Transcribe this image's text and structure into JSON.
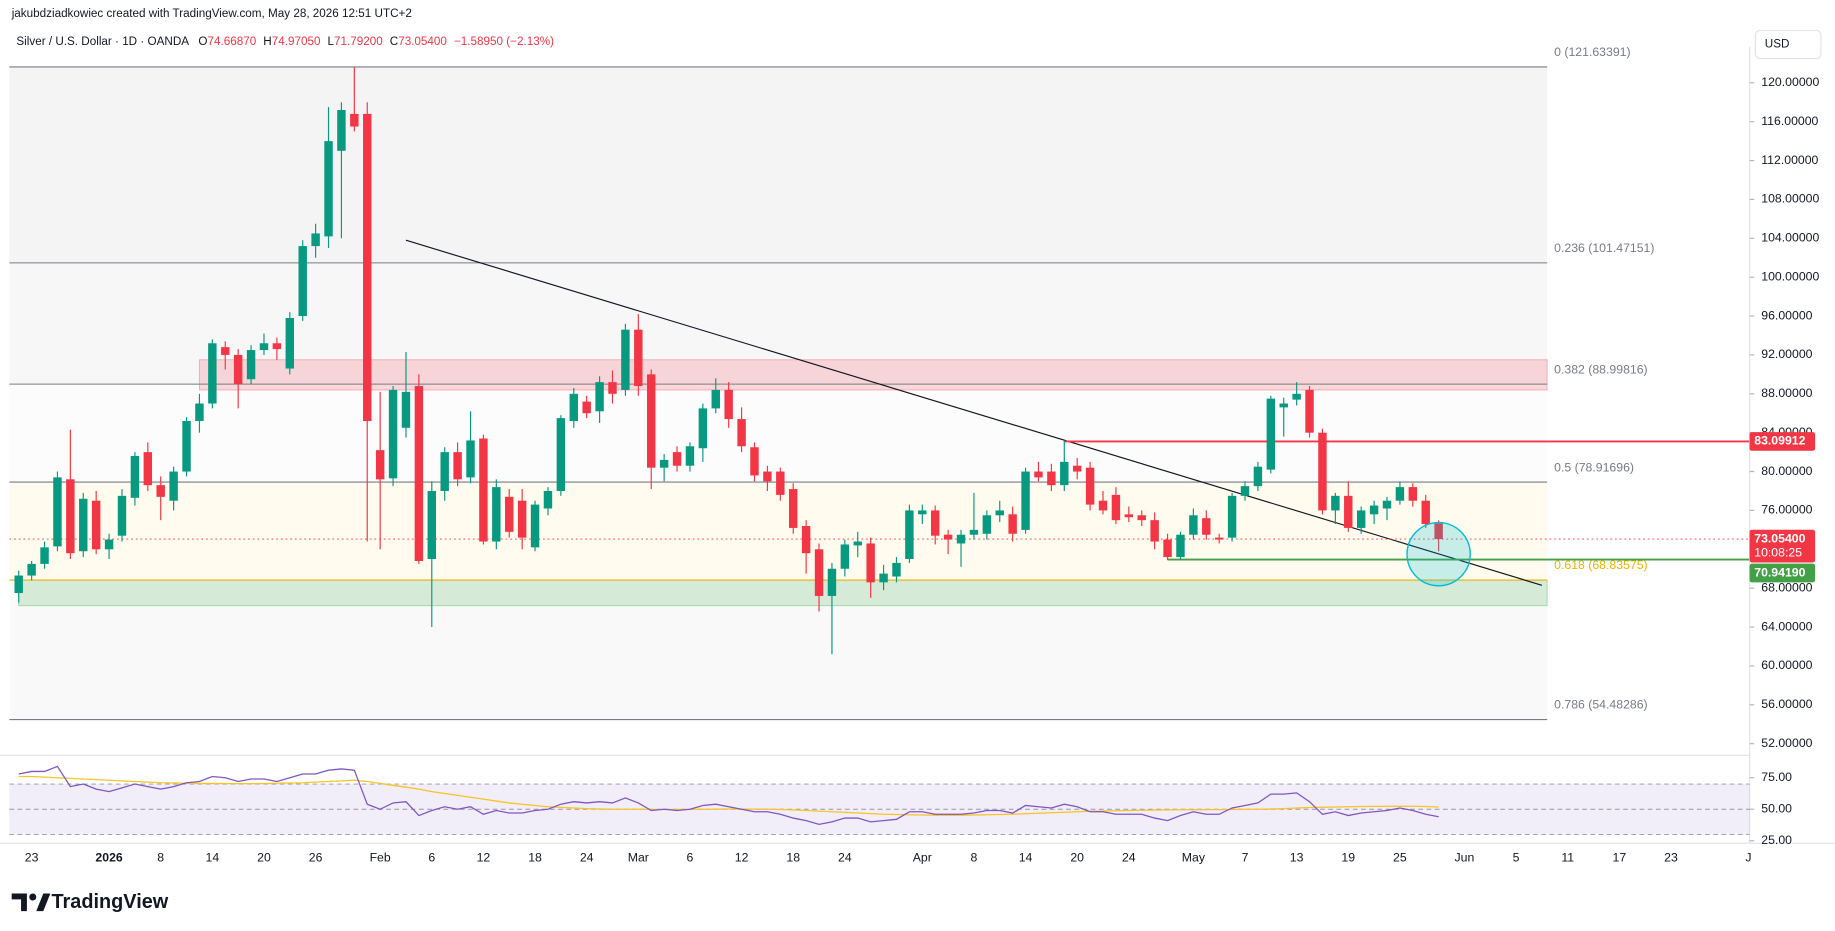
{
  "header": {
    "credit": "jakubdziadkowiec created with TradingView.com, May 28, 2026 12:51 UTC+2",
    "symbol": "Silver / U.S. Dollar · 1D · OANDA",
    "ohlc": [
      "O",
      "74.66870",
      "H",
      "74.97050",
      "L",
      "71.79200",
      "C",
      "73.05400"
    ],
    "change": "−1.58950 (−2.13%)",
    "currency": "USD",
    "brand": "TradingView"
  },
  "chart_data": {
    "type": "candlestick",
    "up_color": "#089981",
    "down_color": "#f23645",
    "categories": [
      null,
      "23",
      null,
      null,
      null,
      null,
      null,
      "2026",
      null,
      null,
      null,
      "8",
      null,
      null,
      null,
      "14",
      null,
      null,
      null,
      "20",
      null,
      null,
      null,
      "26",
      null,
      null,
      null,
      null,
      "Feb",
      null,
      null,
      null,
      "6",
      null,
      null,
      null,
      "12",
      null,
      null,
      null,
      "18",
      null,
      null,
      null,
      "24",
      null,
      null,
      null,
      "Mar",
      null,
      null,
      null,
      "6",
      null,
      null,
      null,
      "12",
      null,
      null,
      null,
      "18",
      null,
      null,
      null,
      "24",
      null,
      null,
      null,
      null,
      null,
      "Apr",
      null,
      null,
      null,
      "8",
      null,
      null,
      null,
      "14",
      null,
      null,
      null,
      "20",
      null,
      null,
      null,
      "24",
      null,
      null,
      null,
      null,
      "May",
      null,
      null,
      null,
      "7",
      null,
      null,
      null,
      "13",
      null,
      null,
      null,
      "19",
      null,
      null,
      null,
      "25",
      null,
      null,
      null,
      null,
      "Jun",
      null,
      null,
      null,
      "5",
      null,
      null,
      null,
      "11",
      null,
      null,
      null,
      "17",
      null,
      null,
      null,
      "23",
      null,
      null,
      null,
      null,
      null,
      "J"
    ],
    "candles": [
      [
        67.5,
        69.8,
        66.5,
        69.3
      ],
      [
        69.3,
        70.8,
        68.8,
        70.5
      ],
      [
        70.5,
        72.8,
        70.0,
        72.2
      ],
      [
        72.3,
        80.0,
        71.8,
        79.4
      ],
      [
        79.2,
        84.3,
        71.0,
        71.6
      ],
      [
        71.8,
        77.8,
        71.2,
        77.2
      ],
      [
        77.0,
        78.0,
        71.5,
        72.0
      ],
      [
        72.0,
        73.6,
        71.0,
        73.0
      ],
      [
        73.4,
        78.2,
        72.8,
        77.5
      ],
      [
        77.3,
        82.0,
        76.5,
        81.6
      ],
      [
        82.0,
        83.0,
        78.0,
        78.6
      ],
      [
        78.6,
        79.5,
        75.0,
        77.4
      ],
      [
        77.0,
        80.5,
        76.0,
        80.0
      ],
      [
        80.0,
        85.6,
        79.5,
        85.2
      ],
      [
        85.2,
        88.0,
        84.0,
        87.0
      ],
      [
        87.0,
        93.6,
        86.5,
        93.2
      ],
      [
        92.8,
        93.4,
        90.5,
        92.0
      ],
      [
        92.0,
        92.6,
        86.5,
        89.0
      ],
      [
        89.5,
        93.0,
        89.0,
        92.5
      ],
      [
        92.5,
        94.2,
        92.0,
        93.2
      ],
      [
        93.2,
        93.8,
        91.5,
        92.6
      ],
      [
        90.6,
        96.4,
        90.0,
        95.8
      ],
      [
        96.0,
        103.8,
        95.5,
        103.2
      ],
      [
        103.2,
        105.5,
        102.0,
        104.5
      ],
      [
        104.2,
        117.5,
        103.0,
        114.0
      ],
      [
        113.0,
        118.0,
        104.0,
        117.2
      ],
      [
        116.8,
        121.6,
        115.0,
        115.5
      ],
      [
        116.8,
        118.0,
        72.8,
        85.2
      ],
      [
        82.2,
        88.2,
        72.0,
        79.2
      ],
      [
        79.3,
        88.8,
        78.5,
        88.4
      ],
      [
        84.5,
        92.3,
        83.5,
        88.2
      ],
      [
        88.8,
        90.0,
        70.5,
        70.8
      ],
      [
        71.0,
        79.0,
        64.0,
        78.0
      ],
      [
        78.0,
        82.5,
        77.0,
        82.0
      ],
      [
        82.0,
        83.0,
        78.5,
        79.2
      ],
      [
        79.4,
        86.2,
        78.8,
        83.2
      ],
      [
        83.4,
        83.8,
        72.5,
        72.8
      ],
      [
        72.8,
        79.2,
        72.0,
        78.4
      ],
      [
        77.4,
        78.2,
        73.2,
        73.8
      ],
      [
        77.0,
        78.2,
        72.0,
        73.2
      ],
      [
        72.2,
        77.0,
        71.8,
        76.6
      ],
      [
        76.2,
        78.4,
        75.5,
        78.0
      ],
      [
        78.0,
        85.8,
        77.5,
        85.5
      ],
      [
        85.2,
        88.6,
        84.5,
        88.0
      ],
      [
        87.2,
        87.8,
        85.5,
        86.0
      ],
      [
        86.2,
        89.8,
        85.0,
        89.2
      ],
      [
        89.2,
        90.4,
        87.0,
        88.0
      ],
      [
        88.4,
        95.2,
        87.8,
        94.6
      ],
      [
        94.6,
        96.2,
        87.8,
        88.8
      ],
      [
        90.0,
        90.5,
        78.2,
        80.4
      ],
      [
        80.4,
        81.8,
        79.0,
        81.2
      ],
      [
        82.0,
        82.6,
        80.0,
        80.6
      ],
      [
        80.6,
        83.0,
        80.0,
        82.6
      ],
      [
        82.4,
        87.0,
        81.0,
        86.5
      ],
      [
        86.5,
        89.6,
        86.0,
        88.4
      ],
      [
        88.4,
        89.2,
        84.5,
        85.4
      ],
      [
        85.4,
        86.6,
        82.0,
        82.6
      ],
      [
        82.5,
        83.0,
        79.0,
        79.6
      ],
      [
        80.0,
        80.6,
        78.0,
        79.0
      ],
      [
        80.0,
        80.4,
        77.0,
        77.6
      ],
      [
        78.2,
        78.8,
        73.6,
        74.2
      ],
      [
        74.4,
        75.0,
        69.5,
        71.6
      ],
      [
        72.0,
        72.6,
        65.6,
        67.2
      ],
      [
        67.2,
        70.6,
        61.2,
        70.0
      ],
      [
        70.0,
        73.0,
        69.2,
        72.5
      ],
      [
        72.4,
        73.8,
        71.2,
        72.8
      ],
      [
        72.6,
        73.2,
        67.0,
        68.6
      ],
      [
        68.6,
        70.4,
        67.8,
        69.5
      ],
      [
        69.2,
        71.2,
        68.6,
        70.6
      ],
      [
        71.0,
        76.6,
        70.6,
        76.0
      ],
      [
        75.6,
        76.6,
        74.6,
        76.0
      ],
      [
        76.0,
        76.5,
        72.5,
        73.4
      ],
      [
        73.5,
        74.0,
        71.5,
        73.0
      ],
      [
        72.6,
        74.0,
        70.2,
        73.5
      ],
      [
        73.5,
        77.8,
        73.0,
        74.0
      ],
      [
        73.6,
        76.0,
        73.0,
        75.5
      ],
      [
        75.5,
        77.0,
        74.8,
        76.0
      ],
      [
        75.6,
        76.4,
        72.8,
        73.6
      ],
      [
        74.0,
        80.4,
        73.6,
        80.0
      ],
      [
        80.0,
        81.0,
        79.0,
        79.4
      ],
      [
        80.0,
        80.8,
        78.0,
        78.6
      ],
      [
        78.6,
        83.2,
        78.0,
        81.0
      ],
      [
        80.6,
        81.4,
        79.2,
        80.0
      ],
      [
        80.4,
        81.0,
        76.0,
        76.6
      ],
      [
        77.0,
        78.0,
        75.6,
        76.0
      ],
      [
        77.6,
        78.4,
        74.6,
        75.0
      ],
      [
        75.6,
        76.4,
        74.8,
        75.3
      ],
      [
        75.5,
        76.0,
        74.4,
        75.0
      ],
      [
        75.0,
        75.8,
        72.0,
        72.8
      ],
      [
        73.0,
        73.6,
        70.9,
        71.2
      ],
      [
        71.2,
        73.8,
        70.9,
        73.5
      ],
      [
        73.5,
        76.2,
        73.0,
        75.5
      ],
      [
        75.2,
        76.0,
        73.0,
        73.5
      ],
      [
        73.2,
        73.6,
        72.6,
        73.0
      ],
      [
        73.2,
        77.8,
        72.8,
        77.5
      ],
      [
        77.5,
        79.0,
        77.0,
        78.5
      ],
      [
        78.5,
        81.0,
        78.0,
        80.5
      ],
      [
        80.2,
        87.8,
        79.8,
        87.5
      ],
      [
        86.6,
        87.6,
        83.6,
        87.0
      ],
      [
        87.4,
        89.2,
        86.8,
        88.0
      ],
      [
        88.4,
        88.8,
        83.5,
        84.0
      ],
      [
        84.0,
        84.4,
        75.6,
        76.0
      ],
      [
        76.0,
        77.8,
        74.6,
        77.5
      ],
      [
        77.5,
        79.0,
        73.8,
        74.2
      ],
      [
        74.2,
        76.4,
        73.6,
        76.0
      ],
      [
        75.6,
        77.0,
        74.6,
        76.5
      ],
      [
        76.2,
        77.4,
        75.0,
        77.0
      ],
      [
        77.0,
        79.0,
        76.6,
        78.4
      ],
      [
        78.4,
        78.8,
        76.4,
        77.0
      ],
      [
        77.0,
        77.6,
        74.2,
        74.6
      ],
      [
        74.6687,
        74.9705,
        71.792,
        73.054
      ],
      null,
      null,
      null,
      null,
      null,
      null,
      null,
      null,
      null,
      null,
      null,
      null,
      null,
      null,
      null,
      null,
      null,
      null,
      null,
      null,
      null,
      null,
      null,
      null
    ],
    "ylim": [
      50.8,
      123.7
    ],
    "yticks": [
      {
        "value": 52,
        "label": "52.00000"
      },
      {
        "value": 56,
        "label": "56.00000"
      },
      {
        "value": 60,
        "label": "60.00000"
      },
      {
        "value": 64,
        "label": "64.00000"
      },
      {
        "value": 68,
        "label": "68.00000"
      },
      {
        "value": 72,
        "label": "72.00000"
      },
      {
        "value": 76,
        "label": "76.00000"
      },
      {
        "value": 80,
        "label": "80.00000"
      },
      {
        "value": 84,
        "label": "84.00000"
      },
      {
        "value": 88,
        "label": "88.00000"
      },
      {
        "value": 92,
        "label": "92.00000"
      },
      {
        "value": 96,
        "label": "96.00000"
      },
      {
        "value": 100,
        "label": "100.00000"
      },
      {
        "value": 104,
        "label": "104.00000"
      },
      {
        "value": 108,
        "label": "108.00000"
      },
      {
        "value": 112,
        "label": "112.00000"
      },
      {
        "value": 116,
        "label": "116.00000"
      },
      {
        "value": 120,
        "label": "120.00000"
      }
    ],
    "fib_levels": [
      {
        "label": "0 (121.63391)",
        "value": 121.63391,
        "color": "#787b86",
        "fill": "#f4f4f5"
      },
      {
        "label": "0.236 (101.47151)",
        "value": 101.47151,
        "color": "#787b86",
        "fill": "#f7f7f8"
      },
      {
        "label": "0.382 (88.99816)",
        "value": 88.99816,
        "color": "#787b86",
        "fill": "#fcfcfc"
      },
      {
        "label": "0.5 (78.91696)",
        "value": 78.91696,
        "color": "#787b86",
        "fill": "#fffbee"
      },
      {
        "label": "0.618 (68.83575)",
        "value": 68.83575,
        "color": "#e8b400",
        "fill": "#f9f9fa"
      },
      {
        "label": "0.786 (54.48286)",
        "value": 54.48286,
        "color": "#787b86",
        "fill": null
      }
    ],
    "zones": [
      {
        "low": 88.4,
        "high": 91.5,
        "start": 14,
        "color": "rgba(242,54,69,0.18)",
        "border": "#f7a9b0"
      },
      {
        "low": 66.2,
        "high": 68.83575,
        "start": 0,
        "color": "rgba(76,175,80,0.2)",
        "border": "#a5d6a7"
      }
    ],
    "trendline": {
      "start": {
        "index": 30,
        "price": 103.8
      },
      "end": {
        "index": 118,
        "price": 68.3
      },
      "color": "#131722"
    },
    "horizontal_lines": [
      {
        "value": 83.09912,
        "label": "83.09912",
        "start": 81,
        "color": "#f23645"
      },
      {
        "value": 70.9419,
        "label": "70.94190",
        "start": 89,
        "color": "#43a047"
      }
    ],
    "last_price": {
      "value": 73.054,
      "label": "73.05400",
      "countdown": "10:08:25",
      "color": "#f23645"
    },
    "highlight": {
      "index": 110,
      "price": 71.5,
      "color": "#00bcd4"
    },
    "rsi": {
      "color": "#7e57c2",
      "ma_color": "#f7c325",
      "ylim": [
        24,
        90
      ],
      "levels": [
        70,
        50,
        30
      ],
      "yticks": [
        {
          "value": 25,
          "label": "25.00"
        },
        {
          "value": 50,
          "label": "50.00"
        },
        {
          "value": 75,
          "label": "75.00"
        }
      ],
      "values": [
        78,
        80,
        80,
        84,
        68,
        70,
        66,
        64,
        67,
        70,
        68,
        66,
        68,
        71,
        72,
        76,
        75,
        72,
        74,
        74,
        72,
        75,
        78,
        78,
        81,
        82,
        81,
        54,
        50,
        55,
        56,
        45,
        49,
        52,
        50,
        52,
        46,
        49,
        47,
        47,
        49,
        50,
        54,
        56,
        55,
        56,
        55,
        59,
        55,
        49,
        50,
        49,
        50,
        53,
        54,
        52,
        50,
        48,
        48,
        46,
        43,
        41,
        38,
        40,
        43,
        43,
        40,
        41,
        42,
        48,
        48,
        46,
        46,
        46,
        47,
        49,
        49,
        47,
        53,
        52,
        51,
        54,
        52,
        48,
        48,
        46,
        46,
        46,
        43,
        41,
        45,
        48,
        46,
        46,
        51,
        53,
        55,
        62,
        62,
        63,
        56,
        46,
        48,
        45,
        47,
        48,
        49,
        51,
        49,
        46,
        44,
        null,
        null,
        null,
        null,
        null,
        null,
        null,
        null,
        null,
        null,
        null,
        null,
        null,
        null,
        null,
        null,
        null,
        null,
        null,
        null,
        null,
        null,
        null,
        null
      ],
      "ma": [
        76,
        76,
        75.5,
        75,
        74.5,
        74,
        73.5,
        73,
        72.5,
        72,
        71.5,
        71,
        70.8,
        70.6,
        70.5,
        70.5,
        70.4,
        70.3,
        70.3,
        70.4,
        70.6,
        70.8,
        71,
        71.5,
        72,
        72.5,
        73,
        72,
        70.5,
        69,
        67.5,
        66,
        64,
        62.5,
        61,
        59.5,
        58,
        56.5,
        55,
        54,
        53,
        52,
        51.5,
        51,
        50.5,
        50.2,
        50,
        50,
        50,
        49.8,
        49.8,
        49.8,
        49.9,
        50,
        50.1,
        50.2,
        50.2,
        50.1,
        50,
        49.8,
        49.5,
        49,
        48.5,
        48,
        47.5,
        47,
        46.5,
        46,
        45.8,
        45.6,
        45.4,
        45.3,
        45.3,
        45.3,
        45.4,
        45.6,
        45.8,
        46,
        46.4,
        46.8,
        47.2,
        47.6,
        48,
        48.4,
        48.6,
        48.8,
        49,
        49.2,
        49.4,
        49.5,
        49.6,
        49.6,
        49.7,
        49.7,
        49.8,
        49.9,
        50,
        50.2,
        50.5,
        51,
        51.4,
        51.6,
        51.8,
        52,
        52.2,
        52.3,
        52.4,
        52.4,
        52.4,
        52.2,
        51.8,
        null,
        null,
        null,
        null,
        null,
        null,
        null,
        null,
        null,
        null,
        null,
        null,
        null,
        null,
        null,
        null,
        null,
        null,
        null,
        null,
        null,
        null,
        null,
        null
      ]
    }
  }
}
